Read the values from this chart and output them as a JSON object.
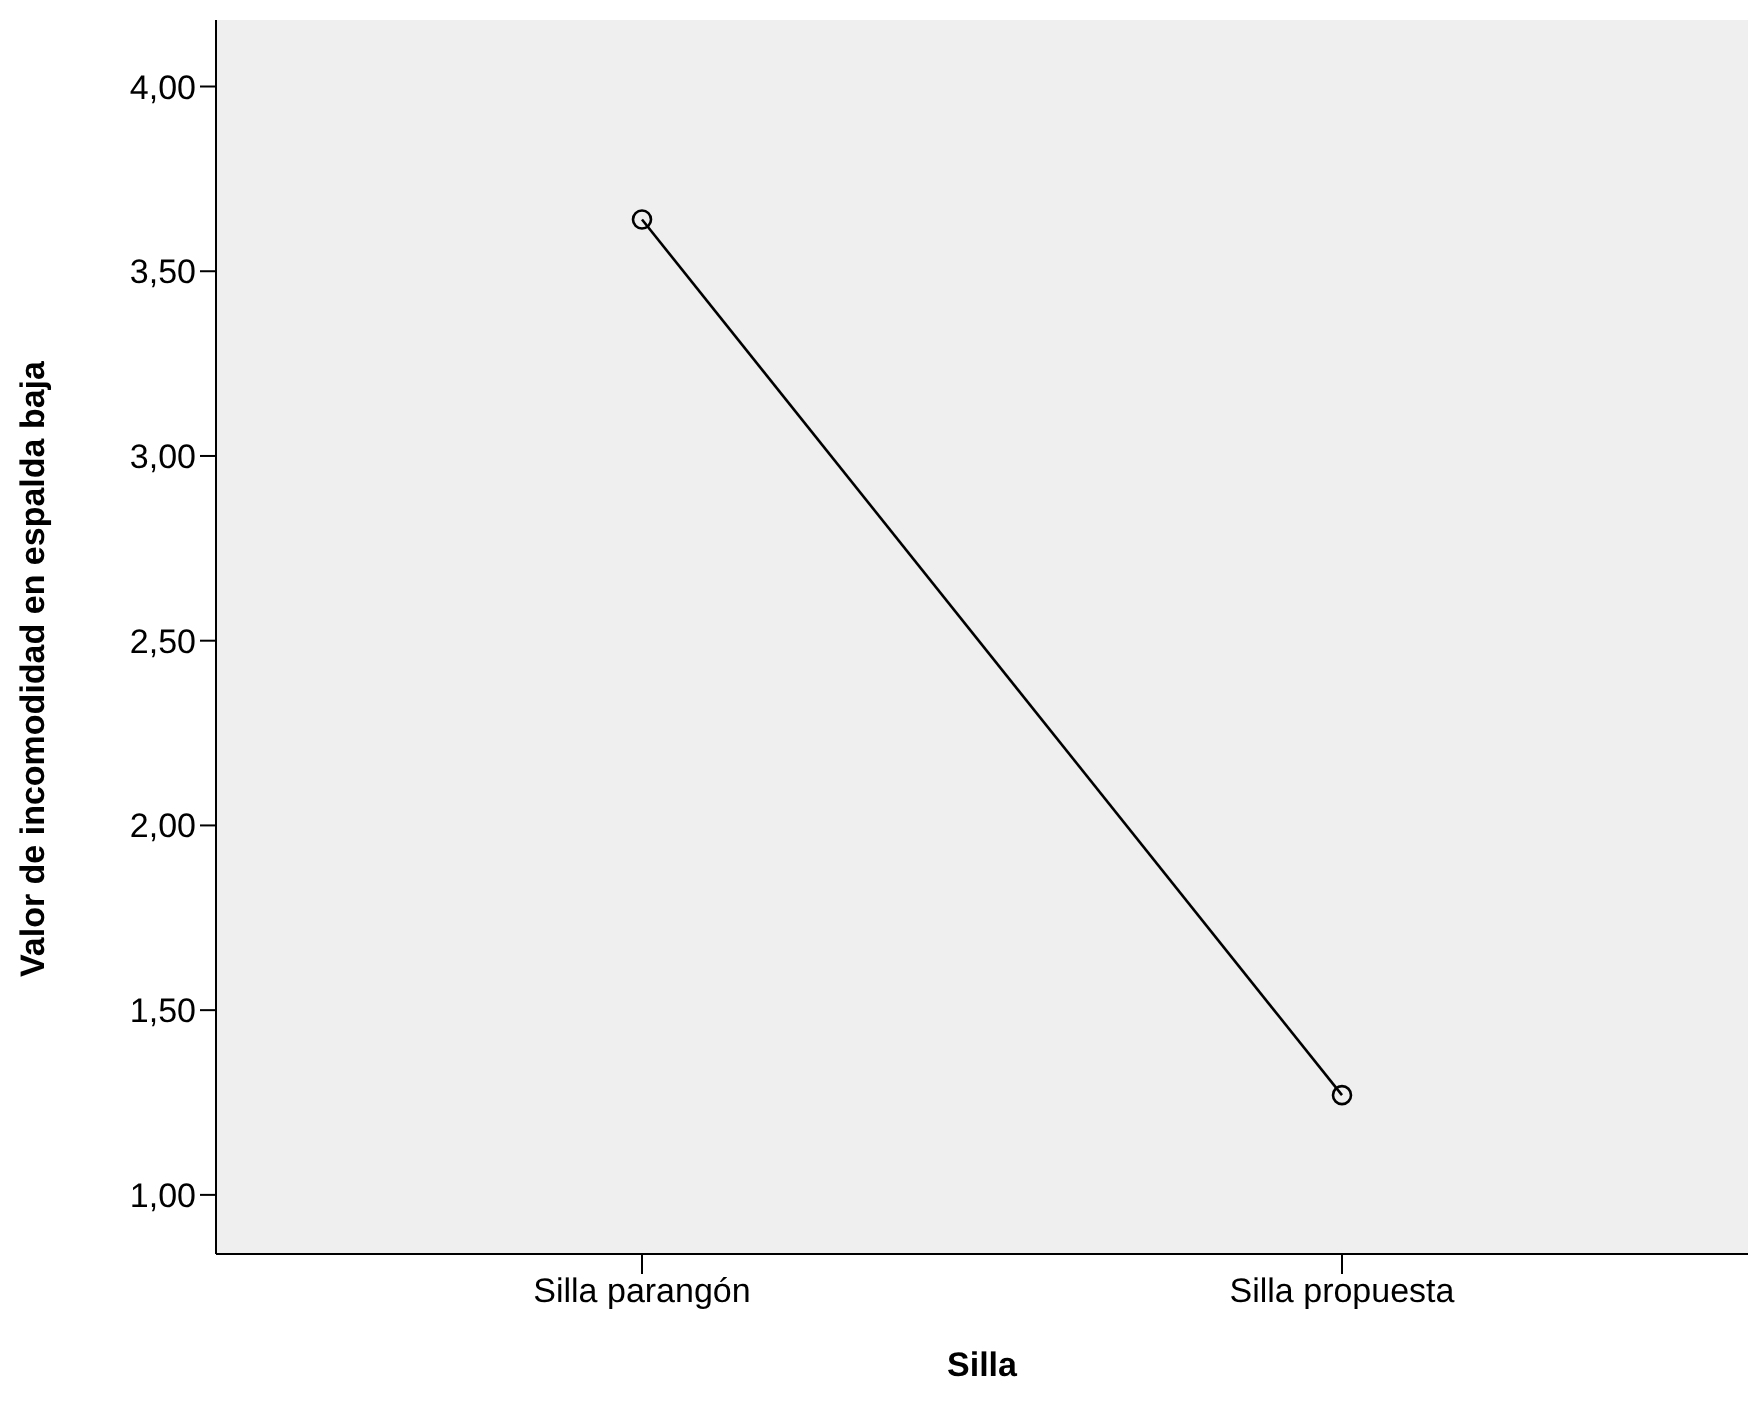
{
  "chart_data": {
    "type": "line",
    "xlabel": "Silla",
    "ylabel": "Valor de incomodidad en espalda baja",
    "categories": [
      "Silla parangón",
      "Silla propuesta"
    ],
    "series": [
      {
        "color": "#000000",
        "values": [
          3.64,
          1.27
        ]
      }
    ],
    "ylim": [
      0.84,
      4.18
    ],
    "yticks": [
      {
        "value": 1,
        "label": "1,00"
      },
      {
        "value": 1.5,
        "label": "1,50"
      },
      {
        "value": 2,
        "label": "2,00"
      },
      {
        "value": 2.5,
        "label": "2,50"
      },
      {
        "value": 3,
        "label": "3,00"
      },
      {
        "value": 3.5,
        "label": "3,50"
      },
      {
        "value": 4,
        "label": "4,00"
      }
    ],
    "grid": false,
    "marker": "circle",
    "line_style": "solid"
  }
}
